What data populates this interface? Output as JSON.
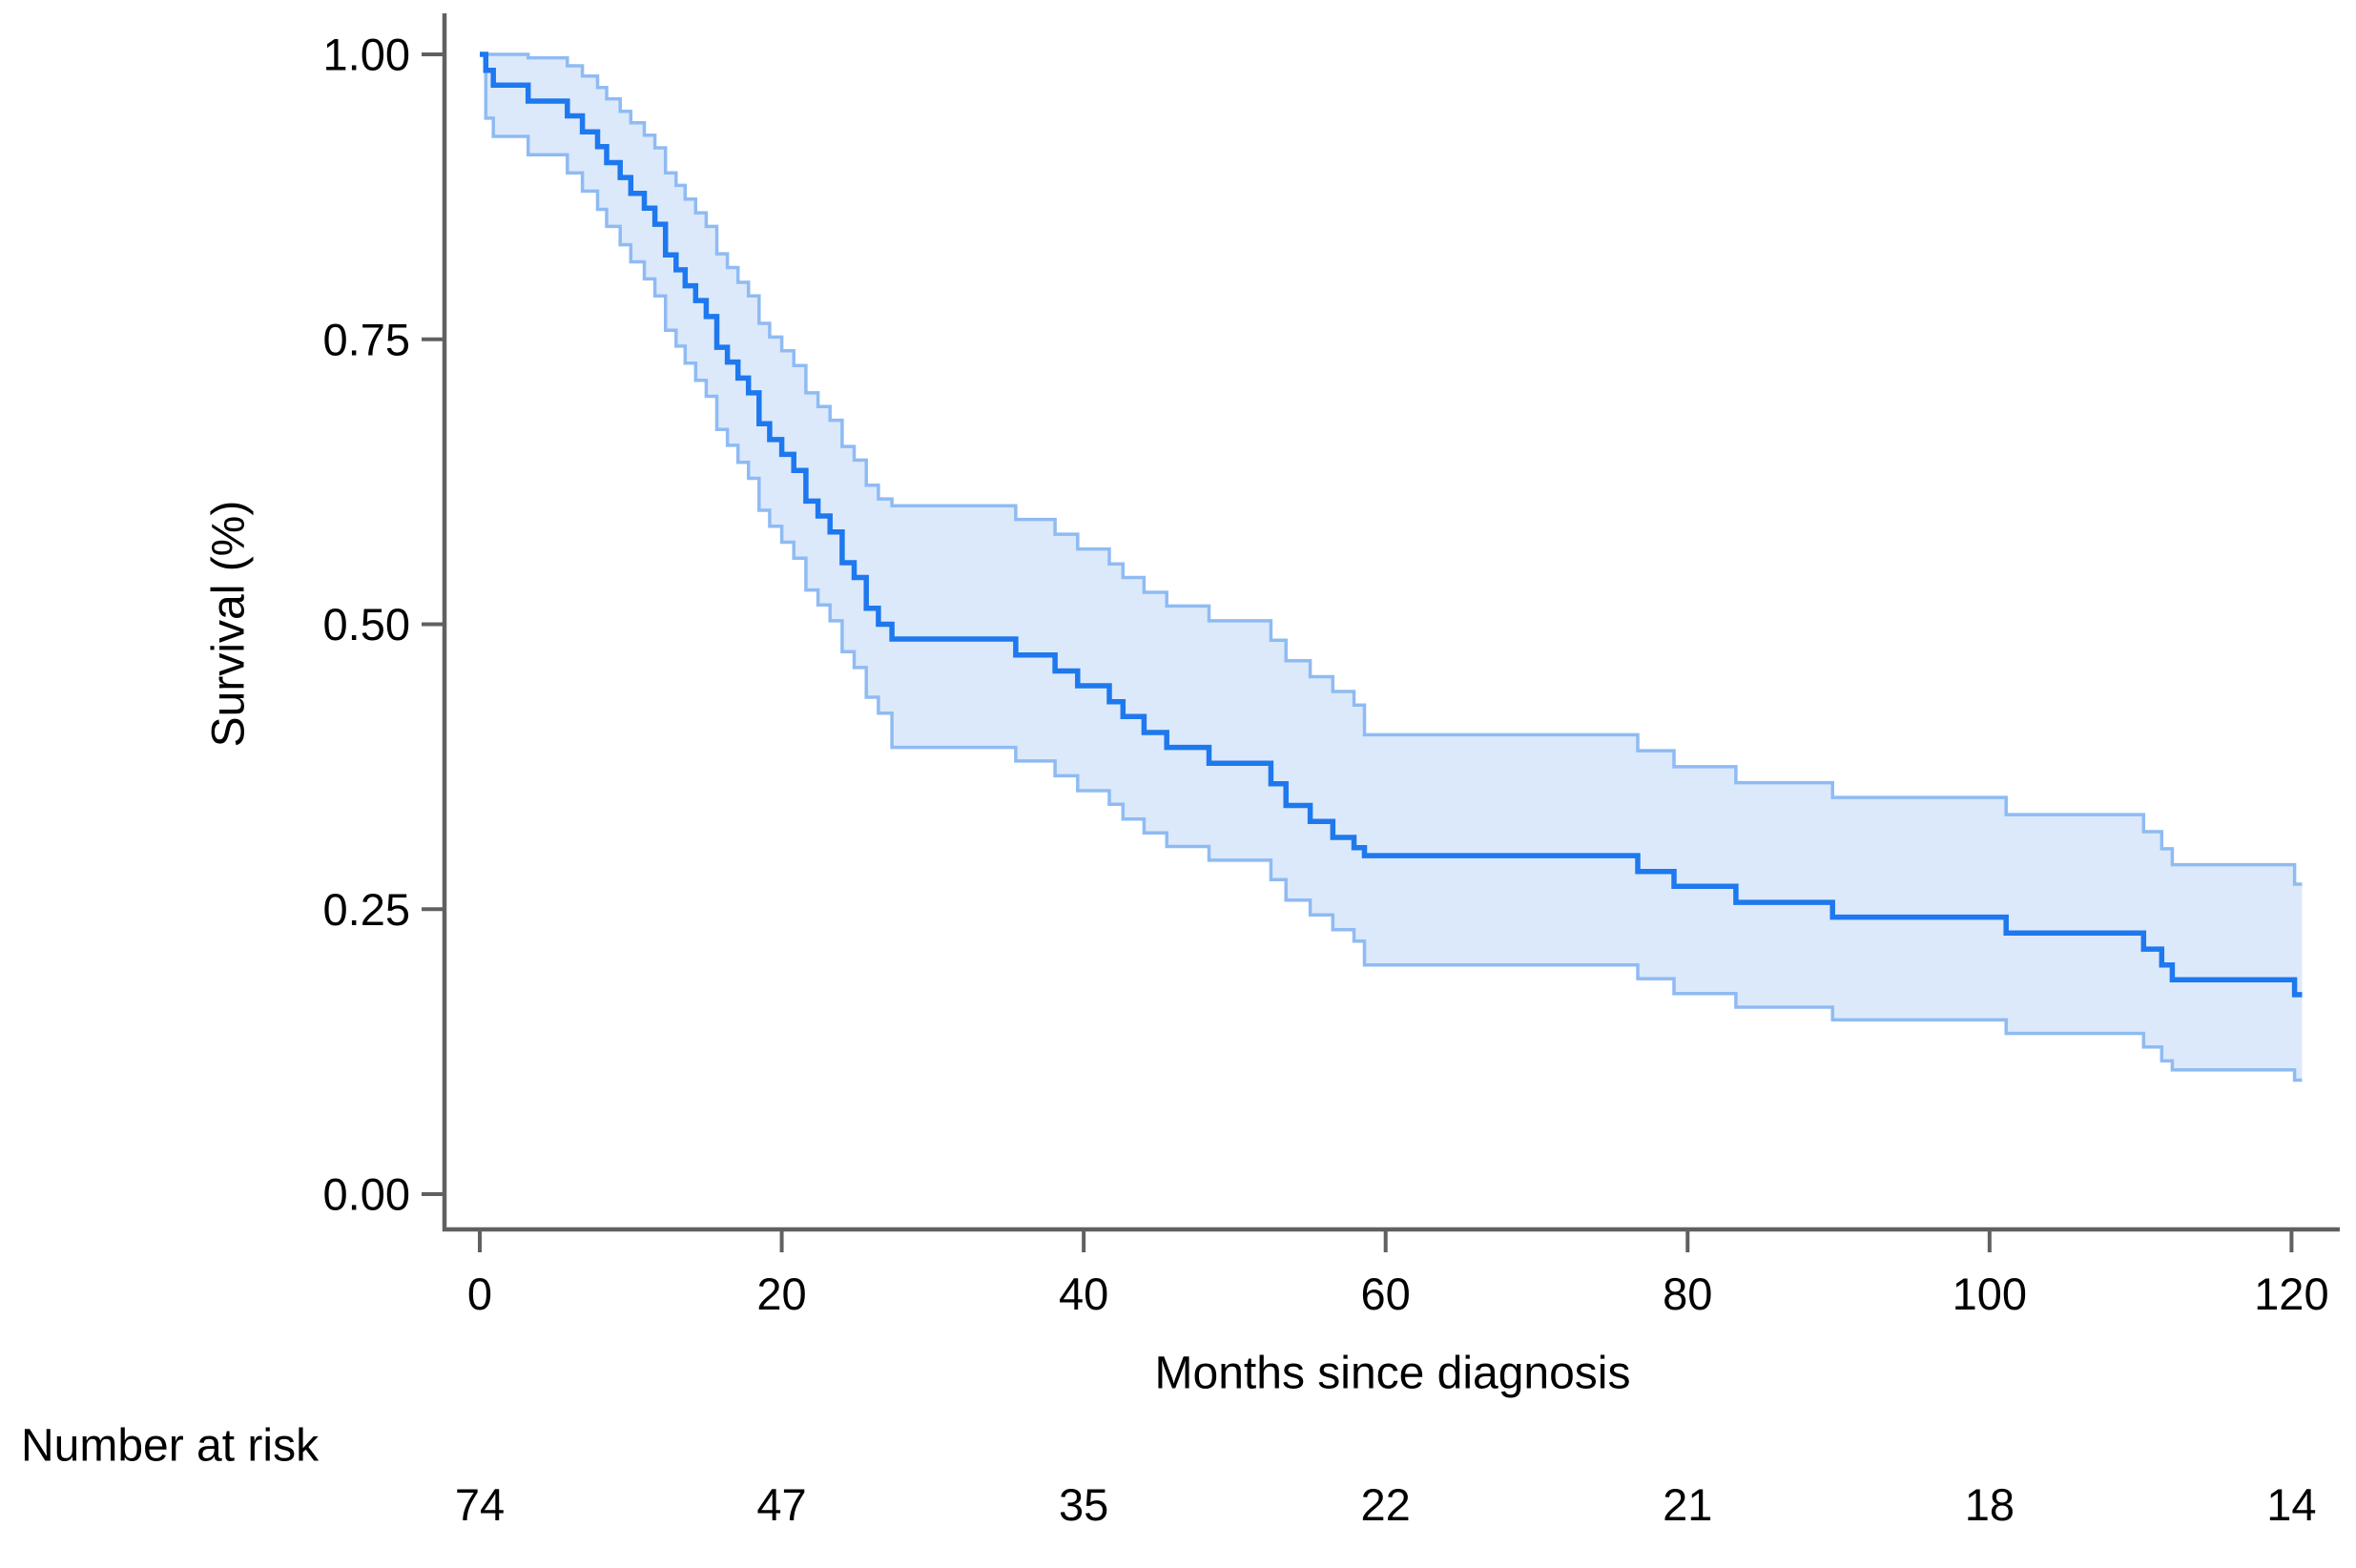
{
  "figure": {
    "background": "#ffffff"
  },
  "axes": {
    "ylabel": "Survival (%)",
    "xlabel": "Months since diagnosis"
  },
  "risk_table": {
    "label": "Number at risk"
  },
  "colors": {
    "survival_line": "#1e78ee",
    "ci_edge": "#8fbbf3",
    "ci_fill": "#dce9fb",
    "axis": "#606060",
    "text": "#000000"
  },
  "chart_data": {
    "type": "line",
    "subtype": "kaplan-meier-step",
    "title": "",
    "xlabel": "Months since diagnosis",
    "ylabel": "Survival (%)",
    "xlim": [
      0,
      120
    ],
    "ylim": [
      0.0,
      1.0
    ],
    "grid": false,
    "legend": "none",
    "x_ticks": [
      {
        "value": 0,
        "label": "0"
      },
      {
        "value": 20,
        "label": "20"
      },
      {
        "value": 40,
        "label": "40"
      },
      {
        "value": 60,
        "label": "60"
      },
      {
        "value": 80,
        "label": "80"
      },
      {
        "value": 100,
        "label": "100"
      },
      {
        "value": 120,
        "label": "120"
      }
    ],
    "y_ticks": [
      {
        "value": 0.0,
        "label": "0.00"
      },
      {
        "value": 0.25,
        "label": "0.25"
      },
      {
        "value": 0.5,
        "label": "0.50"
      },
      {
        "value": 0.75,
        "label": "0.75"
      },
      {
        "value": 1.0,
        "label": "1.00"
      }
    ],
    "end_time": 120.7,
    "series": [
      {
        "name": "survival",
        "role": "estimate",
        "points": [
          [
            0,
            1.0
          ],
          [
            0.4,
            0.986
          ],
          [
            0.9,
            0.973
          ],
          [
            3.2,
            0.959
          ],
          [
            5.8,
            0.946
          ],
          [
            6.8,
            0.932
          ],
          [
            7.8,
            0.919
          ],
          [
            8.4,
            0.905
          ],
          [
            9.3,
            0.892
          ],
          [
            10.0,
            0.878
          ],
          [
            10.9,
            0.865
          ],
          [
            11.6,
            0.851
          ],
          [
            12.3,
            0.824
          ],
          [
            13.0,
            0.811
          ],
          [
            13.6,
            0.797
          ],
          [
            14.3,
            0.784
          ],
          [
            15.0,
            0.77
          ],
          [
            15.7,
            0.743
          ],
          [
            16.4,
            0.73
          ],
          [
            17.1,
            0.716
          ],
          [
            17.8,
            0.703
          ],
          [
            18.5,
            0.676
          ],
          [
            19.2,
            0.662
          ],
          [
            20.0,
            0.649
          ],
          [
            20.8,
            0.635
          ],
          [
            21.6,
            0.608
          ],
          [
            22.4,
            0.595
          ],
          [
            23.2,
            0.581
          ],
          [
            24.0,
            0.554
          ],
          [
            24.8,
            0.541
          ],
          [
            25.6,
            0.514
          ],
          [
            26.4,
            0.5
          ],
          [
            27.3,
            0.487
          ],
          [
            35.5,
            0.473
          ],
          [
            38.1,
            0.459
          ],
          [
            39.6,
            0.446
          ],
          [
            41.7,
            0.432
          ],
          [
            42.6,
            0.419
          ],
          [
            44.0,
            0.405
          ],
          [
            45.5,
            0.392
          ],
          [
            48.3,
            0.378
          ],
          [
            52.4,
            0.36
          ],
          [
            53.4,
            0.341
          ],
          [
            55.0,
            0.327
          ],
          [
            56.5,
            0.313
          ],
          [
            57.9,
            0.304
          ],
          [
            58.6,
            0.297
          ],
          [
            76.7,
            0.283
          ],
          [
            79.1,
            0.27
          ],
          [
            83.2,
            0.256
          ],
          [
            89.6,
            0.243
          ],
          [
            101.1,
            0.229
          ],
          [
            110.2,
            0.215
          ],
          [
            111.4,
            0.201
          ],
          [
            112.1,
            0.188
          ],
          [
            120.2,
            0.175
          ]
        ]
      },
      {
        "name": "ci_upper",
        "role": "confidence-upper",
        "points": [
          [
            0,
            1.0
          ],
          [
            3.2,
            0.997
          ],
          [
            5.8,
            0.99
          ],
          [
            6.8,
            0.981
          ],
          [
            7.8,
            0.971
          ],
          [
            8.4,
            0.961
          ],
          [
            9.3,
            0.95
          ],
          [
            10.0,
            0.94
          ],
          [
            10.9,
            0.929
          ],
          [
            11.6,
            0.918
          ],
          [
            12.3,
            0.896
          ],
          [
            13.0,
            0.885
          ],
          [
            13.6,
            0.873
          ],
          [
            14.3,
            0.861
          ],
          [
            15.0,
            0.849
          ],
          [
            15.7,
            0.825
          ],
          [
            16.4,
            0.813
          ],
          [
            17.1,
            0.8
          ],
          [
            17.8,
            0.788
          ],
          [
            18.5,
            0.764
          ],
          [
            19.2,
            0.752
          ],
          [
            20.0,
            0.74
          ],
          [
            20.8,
            0.727
          ],
          [
            21.6,
            0.703
          ],
          [
            22.4,
            0.691
          ],
          [
            23.2,
            0.679
          ],
          [
            24.0,
            0.656
          ],
          [
            24.8,
            0.644
          ],
          [
            25.6,
            0.622
          ],
          [
            26.4,
            0.61
          ],
          [
            27.3,
            0.604
          ],
          [
            35.5,
            0.592
          ],
          [
            38.1,
            0.579
          ],
          [
            39.6,
            0.566
          ],
          [
            41.7,
            0.553
          ],
          [
            42.6,
            0.541
          ],
          [
            44.0,
            0.528
          ],
          [
            45.5,
            0.516
          ],
          [
            48.3,
            0.503
          ],
          [
            52.4,
            0.486
          ],
          [
            53.4,
            0.468
          ],
          [
            55.0,
            0.454
          ],
          [
            56.5,
            0.441
          ],
          [
            57.9,
            0.429
          ],
          [
            58.6,
            0.403
          ],
          [
            76.7,
            0.389
          ],
          [
            79.1,
            0.375
          ],
          [
            83.2,
            0.361
          ],
          [
            89.6,
            0.348
          ],
          [
            101.1,
            0.333
          ],
          [
            110.2,
            0.318
          ],
          [
            111.4,
            0.303
          ],
          [
            112.1,
            0.289
          ],
          [
            120.2,
            0.272
          ]
        ]
      },
      {
        "name": "ci_lower",
        "role": "confidence-lower",
        "points": [
          [
            0,
            1.0
          ],
          [
            0.4,
            0.944
          ],
          [
            0.9,
            0.928
          ],
          [
            3.2,
            0.912
          ],
          [
            5.8,
            0.896
          ],
          [
            6.8,
            0.88
          ],
          [
            7.8,
            0.864
          ],
          [
            8.4,
            0.849
          ],
          [
            9.3,
            0.833
          ],
          [
            10.0,
            0.818
          ],
          [
            10.9,
            0.803
          ],
          [
            11.6,
            0.788
          ],
          [
            12.3,
            0.758
          ],
          [
            13.0,
            0.744
          ],
          [
            13.6,
            0.729
          ],
          [
            14.3,
            0.714
          ],
          [
            15.0,
            0.7
          ],
          [
            15.7,
            0.671
          ],
          [
            16.4,
            0.657
          ],
          [
            17.1,
            0.642
          ],
          [
            17.8,
            0.628
          ],
          [
            18.5,
            0.6
          ],
          [
            19.2,
            0.586
          ],
          [
            20.0,
            0.572
          ],
          [
            20.8,
            0.558
          ],
          [
            21.6,
            0.53
          ],
          [
            22.4,
            0.517
          ],
          [
            23.2,
            0.503
          ],
          [
            24.0,
            0.476
          ],
          [
            24.8,
            0.462
          ],
          [
            25.6,
            0.436
          ],
          [
            26.4,
            0.422
          ],
          [
            27.3,
            0.392
          ],
          [
            35.5,
            0.38
          ],
          [
            38.1,
            0.367
          ],
          [
            39.6,
            0.354
          ],
          [
            41.7,
            0.342
          ],
          [
            42.6,
            0.329
          ],
          [
            44.0,
            0.317
          ],
          [
            45.5,
            0.305
          ],
          [
            48.3,
            0.293
          ],
          [
            52.4,
            0.276
          ],
          [
            53.4,
            0.258
          ],
          [
            55.0,
            0.245
          ],
          [
            56.5,
            0.232
          ],
          [
            57.9,
            0.222
          ],
          [
            58.6,
            0.201
          ],
          [
            76.7,
            0.189
          ],
          [
            79.1,
            0.176
          ],
          [
            83.2,
            0.164
          ],
          [
            89.6,
            0.153
          ],
          [
            101.1,
            0.141
          ],
          [
            110.2,
            0.129
          ],
          [
            111.4,
            0.117
          ],
          [
            112.1,
            0.109
          ],
          [
            120.2,
            0.1
          ]
        ]
      }
    ],
    "number_at_risk": {
      "label": "Number at risk",
      "times": [
        0,
        20,
        40,
        60,
        80,
        100,
        120
      ],
      "counts": [
        "74",
        "47",
        "35",
        "22",
        "21",
        "18",
        "14"
      ]
    }
  }
}
